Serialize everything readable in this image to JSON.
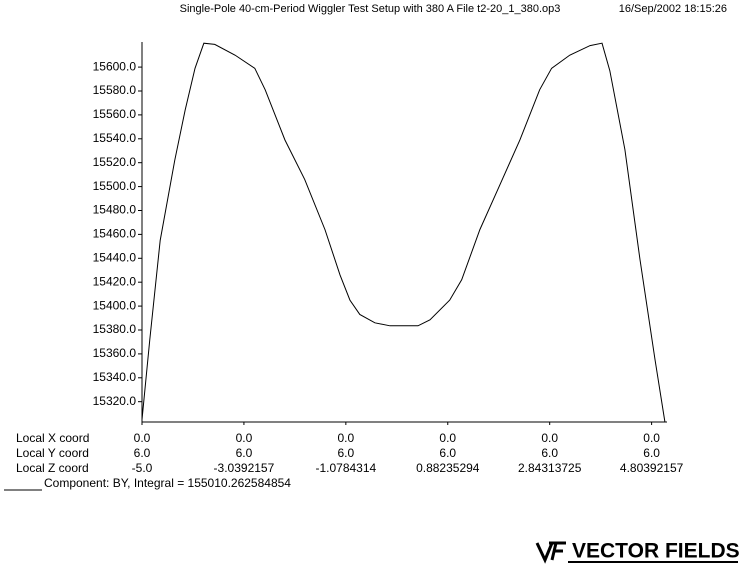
{
  "chart_data": {
    "type": "line",
    "title": "Single-Pole 40-cm-Period Wiggler Test Setup with 380 A  File t2-20_1_380.op3",
    "timestamp": "16/Sep/2002 18:15:26",
    "x": [
      -5.0,
      -4.85,
      -4.65,
      -4.37,
      -4.17,
      -3.98,
      -3.81,
      -3.6,
      -3.21,
      -2.83,
      -2.63,
      -2.25,
      -1.87,
      -1.48,
      -1.19,
      -1.0,
      -0.81,
      -0.52,
      -0.23,
      0.31,
      0.54,
      0.92,
      1.15,
      1.5,
      1.88,
      2.27,
      2.65,
      2.88,
      3.23,
      3.62,
      3.85,
      4.0,
      4.29,
      4.58,
      4.87,
      5.06
    ],
    "series": [
      {
        "name": "BY",
        "color": "#000000",
        "values": [
          15305,
          15372,
          15455,
          15522,
          15564,
          15599,
          15620,
          15619,
          15610,
          15599,
          15581,
          15539,
          15506,
          15464,
          15426,
          15405,
          15393,
          15386,
          15383.5,
          15383.5,
          15388.5,
          15405,
          15422,
          15464,
          15501,
          15539,
          15581,
          15599,
          15610,
          15618,
          15620,
          15597,
          15531,
          15439,
          15355,
          15303
        ]
      }
    ],
    "xlim": [
      -5.0,
      5.1
    ],
    "xticks": [
      {
        "value": -5.0,
        "label": "-5.0"
      },
      {
        "value": -3.0392157,
        "label": "-3.0392157"
      },
      {
        "value": -1.0784314,
        "label": "-1.0784314"
      },
      {
        "value": 0.88235294,
        "label": "0.88235294"
      },
      {
        "value": 2.84313725,
        "label": "2.84313725"
      },
      {
        "value": 4.80392157,
        "label": "4.80392157"
      }
    ],
    "ylim": [
      15303,
      15621
    ],
    "yticks": [
      {
        "value": 15320,
        "label": "15320.0"
      },
      {
        "value": 15340,
        "label": "15340.0"
      },
      {
        "value": 15360,
        "label": "15360.0"
      },
      {
        "value": 15380,
        "label": "15380.0"
      },
      {
        "value": 15400,
        "label": "15400.0"
      },
      {
        "value": 15420,
        "label": "15420.0"
      },
      {
        "value": 15440,
        "label": "15440.0"
      },
      {
        "value": 15460,
        "label": "15460.0"
      },
      {
        "value": 15480,
        "label": "15480.0"
      },
      {
        "value": 15500,
        "label": "15500.0"
      },
      {
        "value": 15520,
        "label": "15520.0"
      },
      {
        "value": 15540,
        "label": "15540.0"
      },
      {
        "value": 15560,
        "label": "15560.0"
      },
      {
        "value": 15580,
        "label": "15580.0"
      },
      {
        "value": 15600,
        "label": "15600.0"
      }
    ],
    "x_coord_label": "Local X coord",
    "x_coord_values": [
      "0.0",
      "0.0",
      "0.0",
      "0.0",
      "0.0",
      "0.0"
    ],
    "y_coord_label": "Local Y coord",
    "y_coord_values": [
      "6.0",
      "6.0",
      "6.0",
      "6.0",
      "6.0",
      "6.0"
    ],
    "z_coord_label": "Local Z coord",
    "component_label": "Component:  BY, Integral = 155010.262584854",
    "logo": "VECTOR FIELDS"
  }
}
